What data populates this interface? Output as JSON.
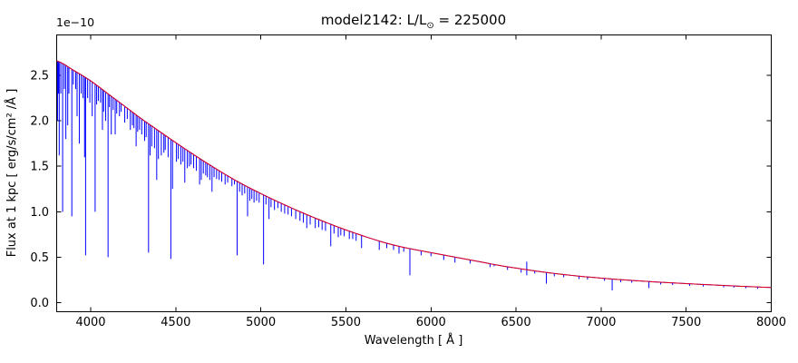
{
  "figure": {
    "background": "#ffffff",
    "spectrum_color": "#0000ff",
    "continuum_color": "#ff0000"
  },
  "chart_data": {
    "type": "line",
    "title": "model2142: L/L⊙ = 225000",
    "title_parts": {
      "prefix": "model2142: L/L",
      "sub": "⊙",
      "suffix": " = 225000"
    },
    "xlabel": "Wavelength [ Å ]",
    "ylabel": "Flux at 1 kpc [ erg/s/cm² /Å ]",
    "y_offset_text": "1e−10",
    "y_scale_factor": "1e-10",
    "xlim": [
      3800,
      8000
    ],
    "ylim_1e10": [
      -0.1,
      2.945
    ],
    "x_ticks": [
      4000,
      4500,
      5000,
      5500,
      6000,
      6500,
      7000,
      7500,
      8000
    ],
    "y_ticks": [
      0.0,
      0.5,
      1.0,
      1.5,
      2.0,
      2.5
    ],
    "grid": false,
    "legend": "none",
    "series": [
      {
        "name": "continuum-model",
        "color": "#ff0000",
        "points_lambda_flux1e10": [
          [
            3800,
            2.66
          ],
          [
            3900,
            2.555
          ],
          [
            4000,
            2.44
          ],
          [
            4100,
            2.3
          ],
          [
            4200,
            2.16
          ],
          [
            4300,
            2.02
          ],
          [
            4400,
            1.89
          ],
          [
            4500,
            1.76
          ],
          [
            4600,
            1.635
          ],
          [
            4700,
            1.515
          ],
          [
            4800,
            1.4
          ],
          [
            4900,
            1.295
          ],
          [
            5000,
            1.2
          ],
          [
            5100,
            1.11
          ],
          [
            5200,
            1.025
          ],
          [
            5300,
            0.945
          ],
          [
            5400,
            0.87
          ],
          [
            5500,
            0.8
          ],
          [
            5600,
            0.735
          ],
          [
            5700,
            0.675
          ],
          [
            5800,
            0.625
          ],
          [
            5900,
            0.585
          ],
          [
            6000,
            0.55
          ],
          [
            6100,
            0.515
          ],
          [
            6200,
            0.48
          ],
          [
            6300,
            0.445
          ],
          [
            6400,
            0.41
          ],
          [
            6500,
            0.38
          ],
          [
            6600,
            0.352
          ],
          [
            6700,
            0.327
          ],
          [
            6800,
            0.305
          ],
          [
            6900,
            0.286
          ],
          [
            7000,
            0.27
          ],
          [
            7100,
            0.255
          ],
          [
            7200,
            0.242
          ],
          [
            7300,
            0.23
          ],
          [
            7400,
            0.219
          ],
          [
            7500,
            0.209
          ],
          [
            7600,
            0.2
          ],
          [
            7700,
            0.191
          ],
          [
            7800,
            0.182
          ],
          [
            7900,
            0.174
          ],
          [
            8000,
            0.167
          ]
        ]
      },
      {
        "name": "spectrum",
        "color": "#0000ff",
        "note": "follows continuum with absorption lines; entries are [wavelength_A, line_bottom_flux_1e10] and optional third value = emission peak (H-alpha)",
        "absorption_lines": [
          [
            3805,
            2.0
          ],
          [
            3810,
            2.3
          ],
          [
            3815,
            1.62
          ],
          [
            3824,
            2.3
          ],
          [
            3835,
            1.0
          ],
          [
            3845,
            2.35
          ],
          [
            3854,
            1.8
          ],
          [
            3865,
            1.95
          ],
          [
            3872,
            2.3
          ],
          [
            3889,
            0.95
          ],
          [
            3898,
            2.4
          ],
          [
            3912,
            2.35
          ],
          [
            3920,
            2.05
          ],
          [
            3933,
            1.75
          ],
          [
            3944,
            2.3
          ],
          [
            3955,
            2.25
          ],
          [
            3964,
            1.6
          ],
          [
            3970,
            0.52
          ],
          [
            3982,
            2.25
          ],
          [
            3995,
            2.2
          ],
          [
            4009,
            2.05
          ],
          [
            4026,
            1.0
          ],
          [
            4035,
            2.18
          ],
          [
            4045,
            2.22
          ],
          [
            4058,
            2.2
          ],
          [
            4069,
            1.9
          ],
          [
            4076,
            2.1
          ],
          [
            4088,
            2.0
          ],
          [
            4102,
            0.5
          ],
          [
            4110,
            2.15
          ],
          [
            4121,
            1.85
          ],
          [
            4132,
            2.12
          ],
          [
            4144,
            1.85
          ],
          [
            4153,
            2.08
          ],
          [
            4169,
            2.05
          ],
          [
            4179,
            2.1
          ],
          [
            4200,
            1.98
          ],
          [
            4215,
            2.02
          ],
          [
            4233,
            1.9
          ],
          [
            4245,
            1.95
          ],
          [
            4254,
            1.92
          ],
          [
            4267,
            1.72
          ],
          [
            4276,
            1.88
          ],
          [
            4287,
            1.9
          ],
          [
            4300,
            1.85
          ],
          [
            4317,
            1.78
          ],
          [
            4326,
            1.82
          ],
          [
            4340,
            0.55
          ],
          [
            4349,
            1.62
          ],
          [
            4359,
            1.72
          ],
          [
            4375,
            1.7
          ],
          [
            4388,
            1.35
          ],
          [
            4398,
            1.58
          ],
          [
            4415,
            1.62
          ],
          [
            4430,
            1.65
          ],
          [
            4438,
            1.68
          ],
          [
            4455,
            1.6
          ],
          [
            4471,
            0.48
          ],
          [
            4481,
            1.25
          ],
          [
            4504,
            1.55
          ],
          [
            4515,
            1.58
          ],
          [
            4530,
            1.52
          ],
          [
            4542,
            1.55
          ],
          [
            4553,
            1.32
          ],
          [
            4568,
            1.48
          ],
          [
            4580,
            1.5
          ],
          [
            4590,
            1.52
          ],
          [
            4605,
            1.48
          ],
          [
            4621,
            1.45
          ],
          [
            4640,
            1.3
          ],
          [
            4650,
            1.35
          ],
          [
            4662,
            1.42
          ],
          [
            4676,
            1.4
          ],
          [
            4686,
            1.38
          ],
          [
            4700,
            1.35
          ],
          [
            4713,
            1.22
          ],
          [
            4725,
            1.38
          ],
          [
            4740,
            1.36
          ],
          [
            4755,
            1.35
          ],
          [
            4770,
            1.33
          ],
          [
            4790,
            1.3
          ],
          [
            4805,
            1.32
          ],
          [
            4830,
            1.28
          ],
          [
            4845,
            1.3
          ],
          [
            4861,
            0.52
          ],
          [
            4875,
            1.22
          ],
          [
            4890,
            1.18
          ],
          [
            4905,
            1.2
          ],
          [
            4922,
            0.95
          ],
          [
            4935,
            1.12
          ],
          [
            4947,
            1.14
          ],
          [
            4960,
            1.1
          ],
          [
            4975,
            1.12
          ],
          [
            4990,
            1.1
          ],
          [
            5016,
            0.42
          ],
          [
            5030,
            1.08
          ],
          [
            5048,
            0.92
          ],
          [
            5060,
            1.05
          ],
          [
            5080,
            1.02
          ],
          [
            5100,
            1.04
          ],
          [
            5120,
            1.0
          ],
          [
            5140,
            0.98
          ],
          [
            5160,
            0.97
          ],
          [
            5180,
            0.95
          ],
          [
            5205,
            0.92
          ],
          [
            5230,
            0.9
          ],
          [
            5250,
            0.88
          ],
          [
            5270,
            0.82
          ],
          [
            5290,
            0.86
          ],
          [
            5320,
            0.82
          ],
          [
            5340,
            0.83
          ],
          [
            5360,
            0.8
          ],
          [
            5380,
            0.79
          ],
          [
            5411,
            0.62
          ],
          [
            5430,
            0.76
          ],
          [
            5455,
            0.72
          ],
          [
            5470,
            0.74
          ],
          [
            5490,
            0.73
          ],
          [
            5520,
            0.7
          ],
          [
            5540,
            0.7
          ],
          [
            5560,
            0.68
          ],
          [
            5592,
            0.6
          ],
          [
            5696,
            0.58
          ],
          [
            5740,
            0.6
          ],
          [
            5780,
            0.58
          ],
          [
            5812,
            0.54
          ],
          [
            5840,
            0.56
          ],
          [
            5876,
            0.3
          ],
          [
            5942,
            0.52
          ],
          [
            6000,
            0.51
          ],
          [
            6075,
            0.47
          ],
          [
            6141,
            0.44
          ],
          [
            6230,
            0.43
          ],
          [
            6347,
            0.39
          ],
          [
            6371,
            0.4
          ],
          [
            6450,
            0.36
          ],
          [
            6530,
            0.33
          ],
          [
            6563,
            0.3,
            0.45
          ],
          [
            6610,
            0.32
          ],
          [
            6678,
            0.21
          ],
          [
            6725,
            0.29
          ],
          [
            6780,
            0.28
          ],
          [
            6870,
            0.26
          ],
          [
            6920,
            0.255
          ],
          [
            7020,
            0.24
          ],
          [
            7065,
            0.135
          ],
          [
            7115,
            0.225
          ],
          [
            7180,
            0.22
          ],
          [
            7281,
            0.16
          ],
          [
            7350,
            0.2
          ],
          [
            7420,
            0.195
          ],
          [
            7520,
            0.185
          ],
          [
            7600,
            0.177
          ],
          [
            7720,
            0.168
          ],
          [
            7780,
            0.165
          ],
          [
            7850,
            0.158
          ],
          [
            7920,
            0.152
          ]
        ]
      }
    ]
  }
}
